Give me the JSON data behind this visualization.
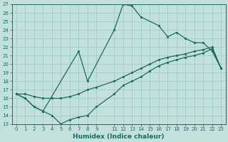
{
  "xlabel": "Humidex (Indice chaleur)",
  "bg_color": "#c2e0dc",
  "grid_color": "#9ec8c4",
  "line_color": "#1a6b60",
  "ylim": [
    13,
    27
  ],
  "xlim": [
    -0.5,
    23.5
  ],
  "yticks": [
    13,
    14,
    15,
    16,
    17,
    18,
    19,
    20,
    21,
    22,
    23,
    24,
    25,
    26,
    27
  ],
  "xticks": [
    0,
    1,
    2,
    3,
    4,
    5,
    6,
    7,
    8,
    9,
    11,
    12,
    13,
    14,
    15,
    16,
    17,
    18,
    19,
    20,
    21,
    22,
    23
  ],
  "line1_x": [
    0,
    1,
    2,
    3,
    7,
    8,
    11,
    12,
    13,
    14,
    16,
    17,
    18,
    19,
    20,
    21,
    22,
    23
  ],
  "line1_y": [
    16.5,
    16.0,
    15.0,
    14.5,
    21.5,
    18.0,
    24.0,
    27.0,
    26.8,
    25.5,
    24.5,
    23.2,
    23.7,
    23.0,
    22.5,
    22.5,
    21.5,
    19.5
  ],
  "line2_x": [
    0,
    1,
    2,
    3,
    4,
    5,
    6,
    7,
    8,
    9,
    11,
    12,
    13,
    14,
    15,
    16,
    17,
    18,
    19,
    20,
    21,
    22,
    23
  ],
  "line2_y": [
    16.5,
    16.5,
    16.2,
    16.0,
    16.0,
    16.0,
    16.2,
    16.5,
    17.0,
    17.3,
    18.0,
    18.5,
    19.0,
    19.5,
    20.0,
    20.5,
    20.8,
    21.0,
    21.2,
    21.5,
    21.7,
    22.0,
    19.5
  ],
  "line3_x": [
    0,
    1,
    2,
    3,
    4,
    5,
    6,
    7,
    8,
    9,
    11,
    12,
    13,
    14,
    15,
    16,
    17,
    18,
    19,
    20,
    21,
    22,
    23
  ],
  "line3_y": [
    16.5,
    16.0,
    15.0,
    14.5,
    14.0,
    13.0,
    13.5,
    13.8,
    14.0,
    15.0,
    16.5,
    17.5,
    18.0,
    18.5,
    19.2,
    19.8,
    20.2,
    20.5,
    20.8,
    21.0,
    21.3,
    21.8,
    19.5
  ],
  "marker_size": 2.0,
  "linewidth": 0.9,
  "tick_fontsize": 5.0,
  "label_fontsize": 6.5
}
